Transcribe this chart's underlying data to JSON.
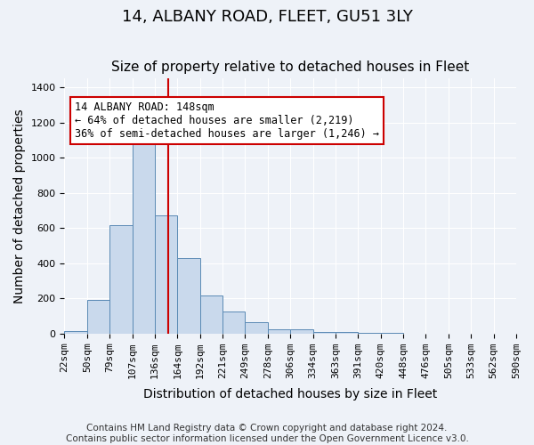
{
  "title": "14, ALBANY ROAD, FLEET, GU51 3LY",
  "subtitle": "Size of property relative to detached houses in Fleet",
  "xlabel": "Distribution of detached houses by size in Fleet",
  "ylabel": "Number of detached properties",
  "annotation_line1": "14 ALBANY ROAD: 148sqm",
  "annotation_line2": "← 64% of detached houses are smaller (2,219)",
  "annotation_line3": "36% of semi-detached houses are larger (1,246) →",
  "footer_line1": "Contains HM Land Registry data © Crown copyright and database right 2024.",
  "footer_line2": "Contains public sector information licensed under the Open Government Licence v3.0.",
  "bin_labels": [
    "22sqm",
    "50sqm",
    "79sqm",
    "107sqm",
    "136sqm",
    "164sqm",
    "192sqm",
    "221sqm",
    "249sqm",
    "278sqm",
    "306sqm",
    "334sqm",
    "363sqm",
    "391sqm",
    "420sqm",
    "448sqm",
    "476sqm",
    "505sqm",
    "533sqm",
    "562sqm",
    "590sqm"
  ],
  "bar_values": [
    15,
    190,
    615,
    1110,
    670,
    430,
    215,
    125,
    65,
    25,
    25,
    10,
    10,
    5,
    5,
    0,
    0,
    0,
    0,
    0
  ],
  "bar_color": "#c9d9ec",
  "bar_edgecolor": "#5a8ab5",
  "red_line_x": 4.6,
  "ylim": [
    0,
    1450
  ],
  "yticks": [
    0,
    200,
    400,
    600,
    800,
    1000,
    1200,
    1400
  ],
  "bg_color": "#eef2f8",
  "plot_bg_color": "#eef2f8",
  "grid_color": "#ffffff",
  "annotation_box_color": "#ffffff",
  "annotation_box_edgecolor": "#cc0000",
  "red_line_color": "#cc0000",
  "title_fontsize": 13,
  "subtitle_fontsize": 11,
  "axis_label_fontsize": 10,
  "tick_fontsize": 8,
  "annotation_fontsize": 8.5,
  "footer_fontsize": 7.5
}
